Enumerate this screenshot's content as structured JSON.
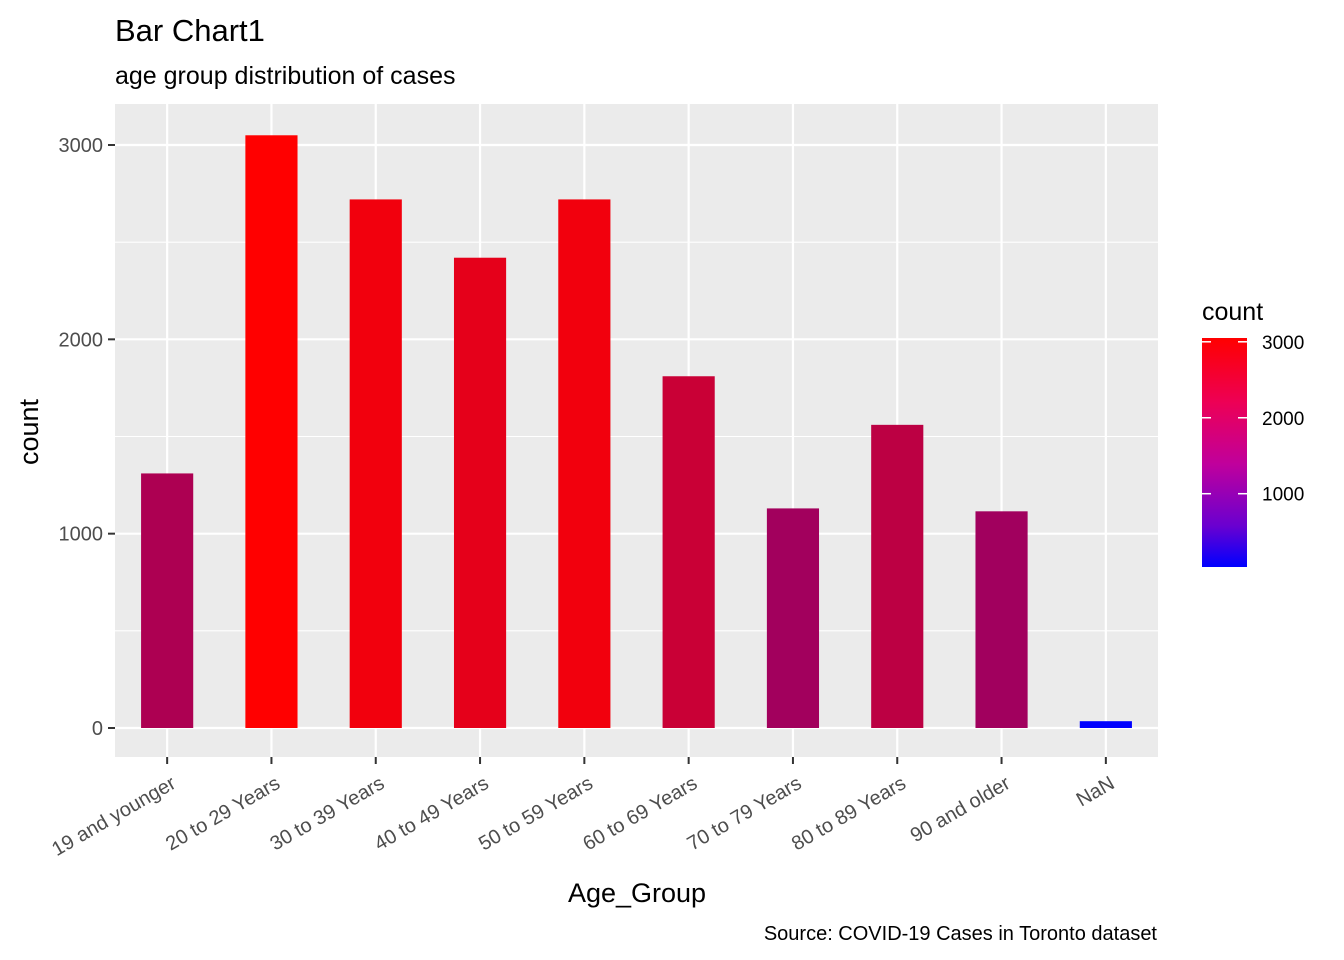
{
  "chart_data": {
    "type": "bar",
    "title": "Bar Chart1",
    "subtitle": "age group distribution of cases",
    "xlabel": "Age_Group",
    "ylabel": "count",
    "caption": "Source: COVID-19 Cases in Toronto dataset",
    "categories": [
      "19 and younger",
      "20 to 29 Years",
      "30 to 39 Years",
      "40 to 49 Years",
      "50 to 59 Years",
      "60 to 69 Years",
      "70 to 79 Years",
      "80 to 89 Years",
      "90 and older",
      "NaN"
    ],
    "values": [
      1310,
      3050,
      2720,
      2420,
      2720,
      1810,
      1130,
      1560,
      1115,
      35
    ],
    "ylim": [
      -150,
      3200
    ],
    "yticks": [
      0,
      1000,
      2000,
      3000
    ],
    "grid": true,
    "panel_background": "#ebebeb",
    "grid_color": "#ffffff",
    "fill_scale": {
      "low_color": "#0000ff",
      "high_color": "#ff0000",
      "limits": [
        35,
        3050
      ]
    },
    "legend": {
      "title": "count",
      "position": "right",
      "breaks": [
        1000,
        2000,
        3000
      ]
    }
  }
}
